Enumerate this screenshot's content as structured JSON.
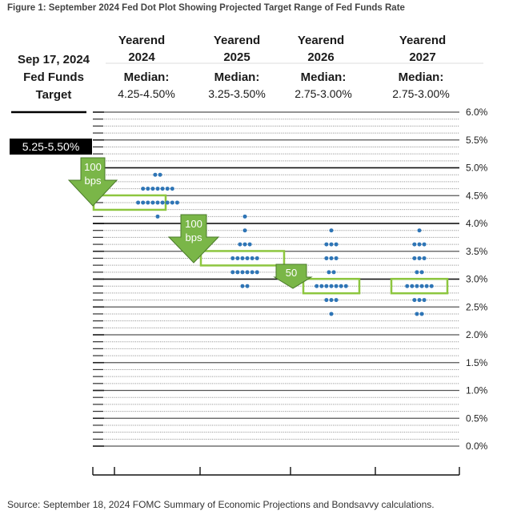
{
  "title": "Figure 1: September 2024 Fed Dot Plot Showing Projected Target Range of Fed Funds Rate",
  "source": "Source: September 18, 2024 FOMC Summary of Economic Projections and Bondsavvy calculations.",
  "target_column": {
    "lines": [
      "Sep 17, 2024",
      "Fed Funds",
      "Target"
    ],
    "value": "5.25-5.50%"
  },
  "columns": [
    {
      "head1": "Yearend",
      "head2": "2024",
      "median_label": "Median:",
      "median": "4.25-4.50%"
    },
    {
      "head1": "Yearend",
      "head2": "2025",
      "median_label": "Median:",
      "median": "3.25-3.50%"
    },
    {
      "head1": "Yearend",
      "head2": "2026",
      "median_label": "Median:",
      "median": "2.75-3.00%"
    },
    {
      "head1": "Yearend",
      "head2": "2027",
      "median_label": "Median:",
      "median": "2.75-3.00%"
    }
  ],
  "arrows": [
    {
      "line1": "100",
      "line2": "bps"
    },
    {
      "line1": "100",
      "line2": "bps"
    },
    {
      "line1": "50",
      "line2": ""
    }
  ],
  "colors": {
    "dot": "#2e75b6",
    "arrow": "#7ab648",
    "box": "#8dc63f",
    "grid": "#555555",
    "grid_fine": "#9a9a9a"
  },
  "chart_data": {
    "type": "scatter",
    "title": "Figure 1: September 2024 Fed Dot Plot Showing Projected Target Range of Fed Funds Rate",
    "ylim": [
      0,
      6
    ],
    "y_ticks": [
      "0.0%",
      "0.5%",
      "1.0%",
      "1.5%",
      "2.0%",
      "2.5%",
      "3.0%",
      "3.5%",
      "4.0%",
      "4.5%",
      "5.0%",
      "5.5%",
      "6.0%"
    ],
    "categories": [
      "2024",
      "2025",
      "2026",
      "2027"
    ],
    "medians": [
      4.375,
      3.375,
      2.875,
      2.875
    ],
    "dots": [
      [
        {
          "rate": 4.875,
          "count": 2
        },
        {
          "rate": 4.625,
          "count": 7
        },
        {
          "rate": 4.375,
          "count": 9
        },
        {
          "rate": 4.125,
          "count": 1
        }
      ],
      [
        {
          "rate": 4.125,
          "count": 1
        },
        {
          "rate": 3.875,
          "count": 1
        },
        {
          "rate": 3.625,
          "count": 3
        },
        {
          "rate": 3.375,
          "count": 6
        },
        {
          "rate": 3.125,
          "count": 6
        },
        {
          "rate": 2.875,
          "count": 2
        }
      ],
      [
        {
          "rate": 3.875,
          "count": 1
        },
        {
          "rate": 3.625,
          "count": 3
        },
        {
          "rate": 3.375,
          "count": 3
        },
        {
          "rate": 3.125,
          "count": 2
        },
        {
          "rate": 2.875,
          "count": 7
        },
        {
          "rate": 2.625,
          "count": 3
        },
        {
          "rate": 2.375,
          "count": 1
        }
      ],
      [
        {
          "rate": 3.875,
          "count": 1
        },
        {
          "rate": 3.625,
          "count": 3
        },
        {
          "rate": 3.375,
          "count": 3
        },
        {
          "rate": 3.125,
          "count": 2
        },
        {
          "rate": 2.875,
          "count": 6
        },
        {
          "rate": 2.625,
          "count": 3
        },
        {
          "rate": 2.375,
          "count": 2
        }
      ]
    ]
  }
}
